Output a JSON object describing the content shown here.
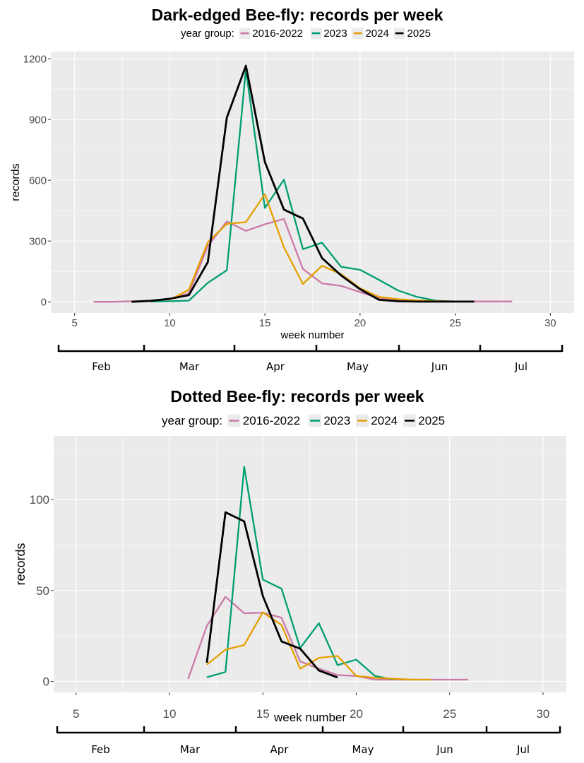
{
  "chart_data": [
    {
      "type": "line",
      "title": "Dark-edged Bee-fly: records per week",
      "legend": {
        "title": "year group:",
        "placement": "top",
        "entries": [
          "2016-2022",
          "2023",
          "2024",
          "2025"
        ]
      },
      "xlabel": "week number",
      "ylabel": "records",
      "xlim": [
        3.75,
        31.25
      ],
      "ylim": [
        -55,
        1235
      ],
      "x_ticks": [
        5,
        10,
        15,
        20,
        25,
        30
      ],
      "y_ticks": [
        0,
        300,
        600,
        900,
        1200
      ],
      "grid": true,
      "series": [
        {
          "name": "2016-2022",
          "color": "#cc79a7",
          "x": [
            6,
            7,
            8,
            9,
            10,
            11,
            12,
            13,
            14,
            15,
            16,
            17,
            18,
            19,
            20,
            21,
            22,
            23,
            24,
            25,
            26,
            27,
            28
          ],
          "values": [
            0,
            0,
            3,
            5,
            12,
            42,
            275,
            397,
            350,
            383,
            409,
            162,
            91,
            79,
            48,
            19,
            6,
            2,
            2,
            2,
            2,
            2,
            2
          ]
        },
        {
          "name": "2023",
          "color": "#009e73",
          "x": [
            9,
            10,
            11,
            12,
            13,
            14,
            15,
            16,
            17,
            18,
            19,
            20,
            21,
            22,
            23,
            24,
            25
          ],
          "values": [
            2,
            3,
            6,
            94,
            156,
            1148,
            463,
            603,
            260,
            292,
            173,
            158,
            108,
            56,
            24,
            6,
            1
          ]
        },
        {
          "name": "2024",
          "color": "#e69f00",
          "x": [
            10,
            11,
            12,
            13,
            14,
            15,
            16,
            17,
            18,
            19,
            20,
            21,
            22,
            23,
            24,
            25
          ],
          "values": [
            10,
            59,
            294,
            385,
            393,
            531,
            269,
            88,
            178,
            137,
            67,
            24,
            13,
            7,
            4,
            2
          ]
        },
        {
          "name": "2025",
          "color": "#000000",
          "x": [
            8,
            9,
            10,
            11,
            12,
            13,
            14,
            15,
            16,
            17,
            18,
            19,
            20,
            21,
            22,
            23,
            24,
            25,
            26
          ],
          "values": [
            0,
            5,
            15,
            33,
            196,
            909,
            1165,
            690,
            455,
            411,
            216,
            131,
            62,
            10,
            3,
            1,
            1,
            1,
            1
          ]
        }
      ],
      "months": [
        "Feb",
        "Mar",
        "Apr",
        "May",
        "Jun",
        "Jul"
      ]
    },
    {
      "type": "line",
      "title": "Dotted Bee-fly: records per week",
      "legend": {
        "title": "year group:",
        "placement": "top",
        "entries": [
          "2016-2022",
          "2023",
          "2024",
          "2025"
        ]
      },
      "xlabel": "week number",
      "ylabel": "records",
      "xlim": [
        3.8,
        31.25
      ],
      "ylim": [
        -6,
        135
      ],
      "x_ticks": [
        5,
        10,
        15,
        20,
        25,
        30
      ],
      "y_ticks": [
        0,
        50,
        100
      ],
      "grid": true,
      "series": [
        {
          "name": "2016-2022",
          "color": "#cc79a7",
          "x": [
            11,
            12,
            13,
            14,
            15,
            16,
            17,
            18,
            19,
            20,
            21,
            22,
            23,
            24,
            25,
            26
          ],
          "values": [
            1.4,
            30.5,
            46.5,
            37.5,
            37.8,
            35,
            11,
            7,
            3.5,
            3,
            1,
            1,
            1,
            1,
            1,
            1
          ]
        },
        {
          "name": "2023",
          "color": "#009e73",
          "x": [
            12,
            13,
            14,
            15,
            16,
            17,
            18,
            19,
            20,
            21,
            22
          ],
          "values": [
            2.3,
            5.2,
            118,
            56,
            51,
            18.4,
            32,
            9,
            12,
            3,
            1
          ]
        },
        {
          "name": "2024",
          "color": "#e69f00",
          "x": [
            12,
            13,
            14,
            15,
            16,
            17,
            18,
            19,
            20,
            21,
            22,
            23,
            24
          ],
          "values": [
            9.2,
            17.5,
            20,
            38,
            31,
            7,
            13,
            14,
            3,
            2,
            1.5,
            1,
            1
          ]
        },
        {
          "name": "2025",
          "color": "#000000",
          "x": [
            12,
            13,
            14,
            15,
            16,
            17,
            18,
            19
          ],
          "values": [
            10.3,
            93,
            88,
            47,
            22,
            18,
            6,
            2.2
          ]
        }
      ],
      "months": [
        "Feb",
        "Mar",
        "Apr",
        "May",
        "Jun",
        "Jul"
      ]
    }
  ]
}
